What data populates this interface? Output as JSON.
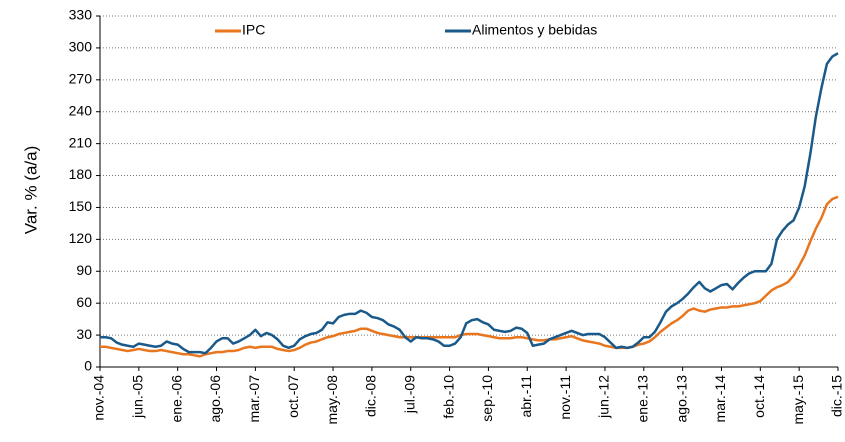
{
  "chart_data": {
    "type": "line",
    "y_label": "Var. % (a/a)",
    "categories": [
      "nov.-04",
      null,
      null,
      null,
      null,
      null,
      null,
      "jun.-05",
      null,
      null,
      null,
      null,
      null,
      null,
      "ene.-06",
      null,
      null,
      null,
      null,
      null,
      null,
      "ago.-06",
      null,
      null,
      null,
      null,
      null,
      null,
      "mar.-07",
      null,
      null,
      null,
      null,
      null,
      null,
      "oct.-07",
      null,
      null,
      null,
      null,
      null,
      null,
      "may.-08",
      null,
      null,
      null,
      null,
      null,
      null,
      "dic.-08",
      null,
      null,
      null,
      null,
      null,
      null,
      "jul.-09",
      null,
      null,
      null,
      null,
      null,
      null,
      "feb.-10",
      null,
      null,
      null,
      null,
      null,
      null,
      "sep.-10",
      null,
      null,
      null,
      null,
      null,
      null,
      "abr.-11",
      null,
      null,
      null,
      null,
      null,
      null,
      "nov.-11",
      null,
      null,
      null,
      null,
      null,
      null,
      "jun.-12",
      null,
      null,
      null,
      null,
      null,
      null,
      "ene.-13",
      null,
      null,
      null,
      null,
      null,
      null,
      "ago.-13",
      null,
      null,
      null,
      null,
      null,
      null,
      "mar.-14",
      null,
      null,
      null,
      null,
      null,
      null,
      "oct.-14",
      null,
      null,
      null,
      null,
      null,
      null,
      "may.-15",
      null,
      null,
      null,
      null,
      null,
      null,
      "dic.-15"
    ],
    "series": [
      {
        "name": "IPC",
        "color": "#e8761e",
        "values": [
          19,
          19,
          18,
          17,
          16,
          15,
          16,
          17,
          16,
          15,
          15,
          16,
          15,
          14,
          13,
          12,
          12,
          11,
          10,
          12,
          13,
          14,
          14,
          15,
          15,
          16,
          18,
          19,
          18,
          19,
          19,
          19,
          17,
          16,
          15,
          16,
          18,
          21,
          23,
          24,
          26,
          28,
          29,
          31,
          32,
          33,
          34,
          36,
          36,
          34,
          32,
          31,
          30,
          29,
          28,
          28,
          28,
          28,
          28,
          28,
          28,
          28,
          28,
          28,
          28,
          30,
          31,
          31,
          31,
          30,
          29,
          28,
          27,
          27,
          27,
          28,
          28,
          27,
          26,
          25,
          25,
          26,
          26,
          27,
          28,
          29,
          27,
          25,
          24,
          23,
          22,
          20,
          19,
          18,
          18,
          18,
          19,
          21,
          22,
          24,
          28,
          33,
          37,
          41,
          44,
          48,
          53,
          55,
          53,
          52,
          54,
          55,
          56,
          56,
          57,
          57,
          58,
          59,
          60,
          62,
          67,
          72,
          75,
          77,
          80,
          86,
          95,
          105,
          118,
          130,
          140,
          153,
          158,
          160
        ]
      },
      {
        "name": "Alimentos y bebidas",
        "color": "#1a5a8a",
        "values": [
          28,
          28,
          27,
          23,
          21,
          20,
          19,
          22,
          21,
          20,
          19,
          20,
          24,
          22,
          21,
          17,
          14,
          14,
          14,
          13,
          18,
          24,
          27,
          27,
          22,
          24,
          27,
          30,
          35,
          29,
          32,
          30,
          26,
          20,
          18,
          20,
          26,
          29,
          31,
          32,
          35,
          42,
          41,
          47,
          49,
          50,
          50,
          53,
          51,
          47,
          46,
          44,
          40,
          38,
          35,
          28,
          24,
          28,
          27,
          27,
          26,
          24,
          20,
          20,
          22,
          28,
          41,
          44,
          45,
          42,
          40,
          35,
          34,
          33,
          34,
          37,
          36,
          32,
          20,
          21,
          22,
          26,
          28,
          30,
          32,
          34,
          32,
          30,
          31,
          31,
          31,
          28,
          23,
          18,
          19,
          18,
          19,
          23,
          28,
          28,
          33,
          42,
          52,
          57,
          60,
          64,
          69,
          75,
          80,
          74,
          71,
          74,
          77,
          78,
          73,
          79,
          84,
          88,
          90,
          90,
          90,
          97,
          120,
          128,
          134,
          138,
          150,
          170,
          200,
          235,
          262,
          285,
          292,
          295
        ]
      }
    ],
    "ylim": [
      0,
      330
    ],
    "yticks": [
      0,
      30,
      60,
      90,
      120,
      150,
      180,
      210,
      240,
      270,
      300,
      330
    ],
    "grid": true,
    "legend": "top"
  }
}
